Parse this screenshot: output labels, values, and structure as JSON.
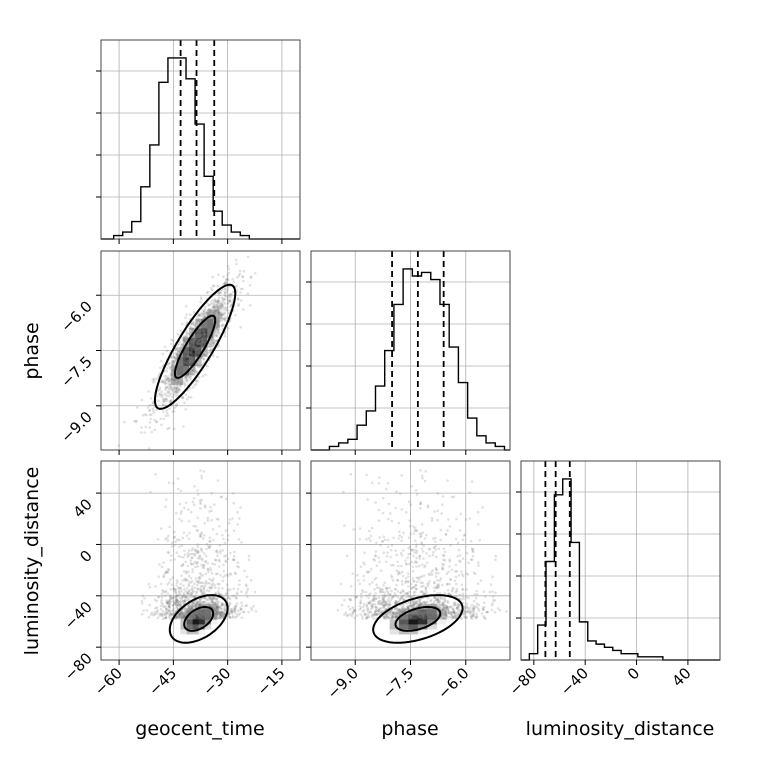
{
  "chart_data": {
    "type": "corner",
    "parameters": [
      "geocent_time",
      "phase",
      "luminosity_distance"
    ],
    "axis_labels": {
      "x_bottom": [
        "geocent_time",
        "phase",
        "luminosity_distance"
      ],
      "y_left": [
        "phase",
        "luminosity_distance"
      ]
    },
    "ranges": {
      "geocent_time": [
        -65,
        -10
      ],
      "phase": [
        -10.2,
        -4.8
      ],
      "luminosity_distance": [
        -90,
        65
      ]
    },
    "ticks": {
      "geocent_time": {
        "values": [
          -60,
          -45,
          -30,
          -15
        ],
        "labels": [
          "−60",
          "−45",
          "−30",
          "−15"
        ]
      },
      "phase": {
        "values": [
          -9.0,
          -7.5,
          -6.0
        ],
        "labels": [
          "−9.0",
          "−7.5",
          "−6.0"
        ]
      },
      "luminosity_distance": {
        "values": [
          -80,
          -40,
          0,
          40
        ],
        "labels": [
          "−80",
          "−40",
          "0",
          "40"
        ]
      }
    },
    "histograms": {
      "geocent_time": {
        "edges_start": -64,
        "bin_width": 2.5,
        "counts": [
          0,
          1,
          2,
          5,
          15,
          27,
          45,
          52,
          52,
          46,
          33,
          18,
          8,
          4,
          2,
          1,
          0,
          0,
          0,
          0,
          0,
          0
        ],
        "quantiles": [
          -43,
          -38.6,
          -33.7
        ]
      },
      "phase": {
        "edges_start": -10.2,
        "bin_width": 0.25,
        "counts": [
          0,
          0,
          1,
          2,
          3,
          7,
          11,
          18,
          28,
          41,
          51,
          49,
          50,
          48,
          41,
          29,
          19,
          9,
          4,
          2,
          1,
          0
        ],
        "quantiles": [
          -8.0,
          -7.3,
          -6.6
        ]
      },
      "luminosity_distance": {
        "edges_start": -90,
        "bin_width": 6.5,
        "counts": [
          0,
          2,
          11,
          31,
          52,
          57,
          37,
          12,
          6,
          5,
          4,
          3,
          2,
          2,
          1,
          1,
          1,
          0,
          0,
          0,
          0,
          0,
          0,
          0
        ],
        "quantiles": [
          -71,
          -63,
          -52
        ]
      }
    },
    "pairs": [
      {
        "x": "geocent_time",
        "y": "phase",
        "mean": [
          -39,
          -7.4
        ],
        "sd": [
          5.6,
          0.85
        ],
        "rho": 0.86
      },
      {
        "x": "geocent_time",
        "y": "luminosity_distance",
        "mean": [
          -38,
          -58
        ],
        "sd": [
          5.6,
          13
        ],
        "rho": 0.45,
        "tail": true
      },
      {
        "x": "phase",
        "y": "luminosity_distance",
        "mean": [
          -7.3,
          -58
        ],
        "sd": [
          0.85,
          13
        ],
        "rho": 0.45,
        "tail": true
      }
    ],
    "contour_levels": [
      0.39,
      0.86
    ],
    "grid": true
  }
}
